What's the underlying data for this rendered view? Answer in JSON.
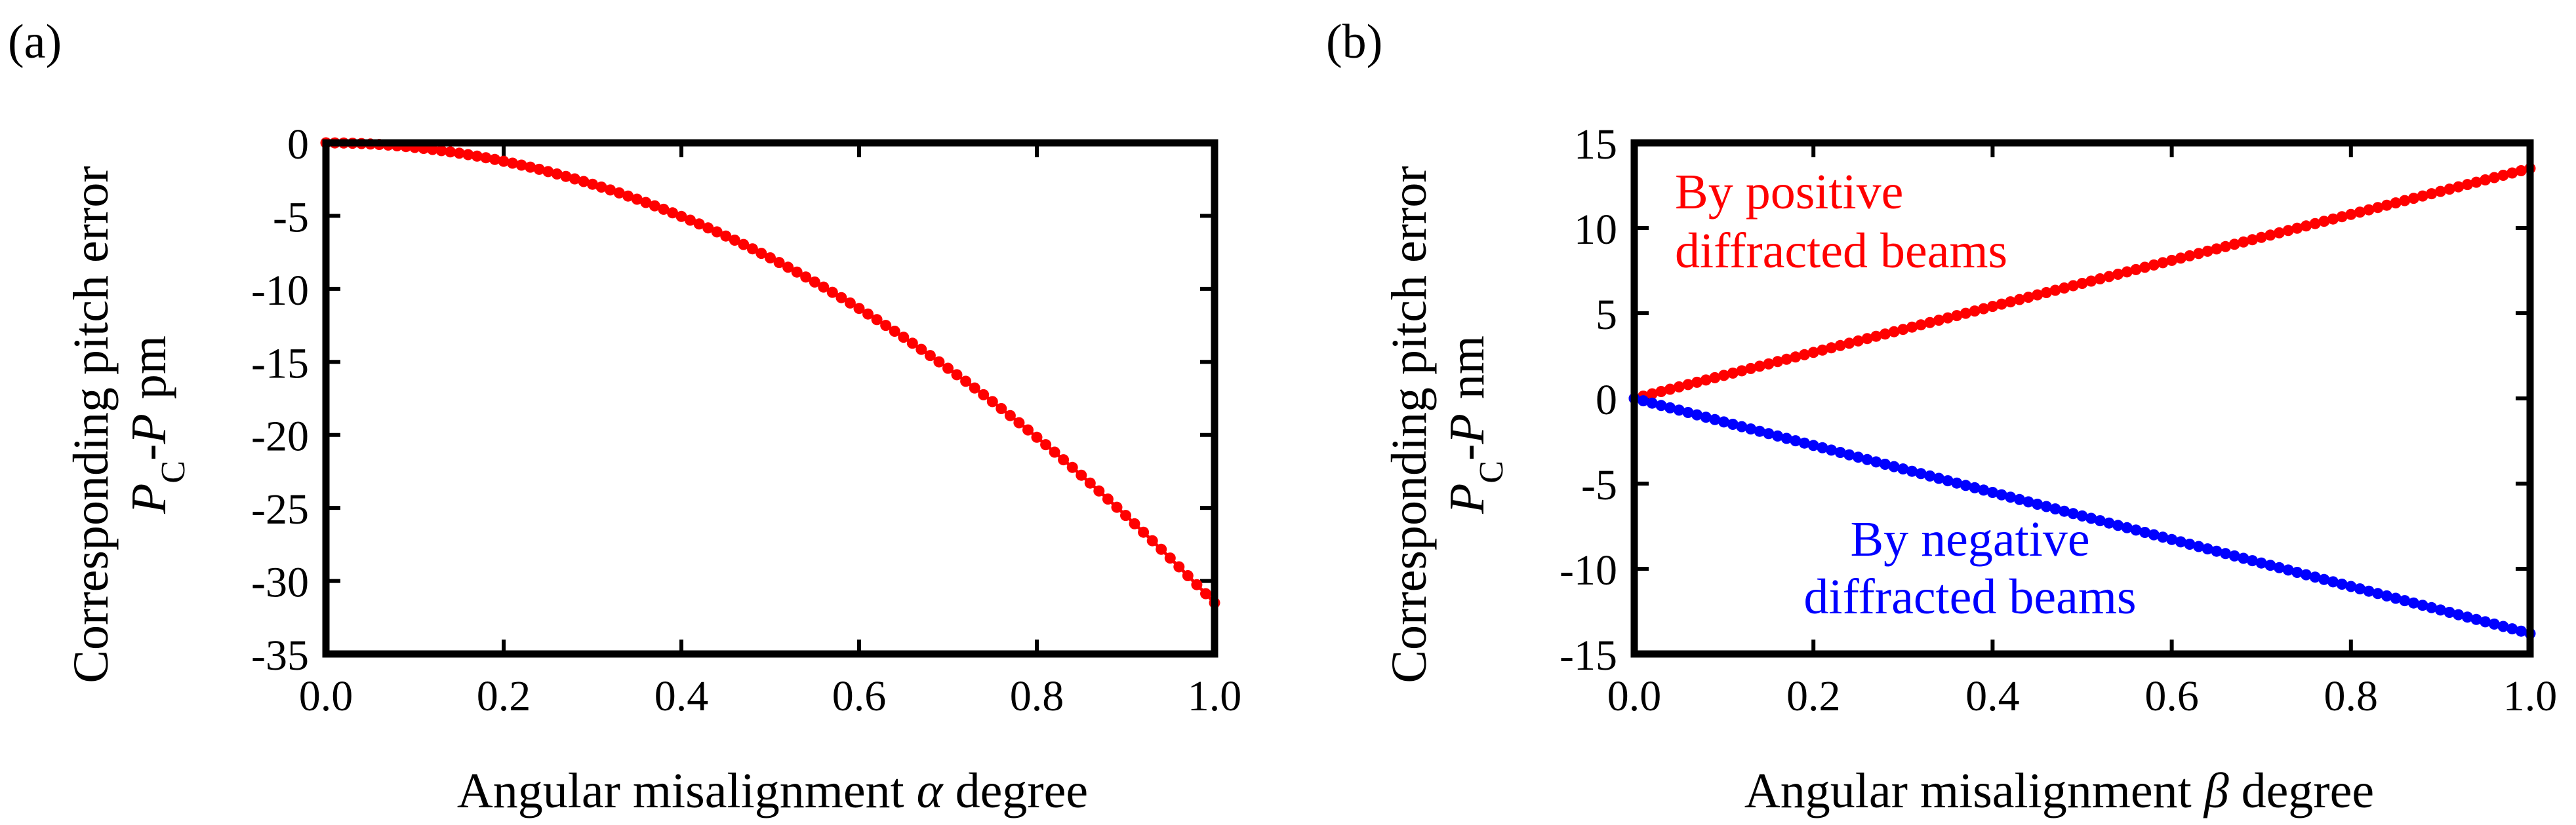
{
  "chart_data": [
    {
      "type": "scatter",
      "panel_label": "(a)",
      "ylabel": {
        "line1": "Corresponding pitch error",
        "line2": {
          "sym": "P",
          "sub": "C",
          "mid": "-",
          "sym2": "P",
          "unit": "pm"
        }
      },
      "xlabel": {
        "prefix": "Angular misalignment ",
        "sym": "α",
        "suffix": " degree"
      },
      "xlim": [
        0.0,
        1.0
      ],
      "ylim": [
        -35,
        0
      ],
      "xticks": [
        "0.0",
        "0.2",
        "0.4",
        "0.6",
        "0.8",
        "1.0"
      ],
      "yticks": [
        "0",
        "-5",
        "-10",
        "-15",
        "-20",
        "-25",
        "-30",
        "-35"
      ],
      "series": [
        {
          "name": "pitch error",
          "color": "#ff0000",
          "marker": "circle",
          "x_start": 0.0,
          "x_end": 1.0,
          "n_points": 101,
          "model": "quadratic",
          "value_at_x_end": -31.5
        }
      ],
      "annotations": []
    },
    {
      "type": "scatter",
      "panel_label": "(b)",
      "ylabel": {
        "line1": "Corresponding pitch error",
        "line2": {
          "sym": "P",
          "sub": "C",
          "mid": "-",
          "sym2": "P",
          "unit": "nm"
        }
      },
      "xlabel": {
        "prefix": "Angular misalignment ",
        "sym": "β",
        "suffix": " degree"
      },
      "xlim": [
        0.0,
        1.0
      ],
      "ylim": [
        -15,
        15
      ],
      "xticks": [
        "0.0",
        "0.2",
        "0.4",
        "0.6",
        "0.8",
        "1.0"
      ],
      "yticks": [
        "15",
        "10",
        "5",
        "0",
        "-5",
        "-10",
        "-15"
      ],
      "series": [
        {
          "name": "By positive diffracted beams",
          "color": "#ff0000",
          "marker": "circle",
          "x_start": 0.0,
          "x_end": 1.0,
          "n_points": 101,
          "model": "linear",
          "value_at_x_end": 13.5
        },
        {
          "name": "By negative diffracted beams",
          "color": "#0000ff",
          "marker": "circle",
          "x_start": 0.0,
          "x_end": 1.0,
          "n_points": 101,
          "model": "linear",
          "value_at_x_end": -13.8
        }
      ],
      "annotations": [
        {
          "lines": [
            "By positive",
            "diffracted beams"
          ],
          "color": "#ff0000",
          "anchor": "upper-left"
        },
        {
          "lines": [
            "By negative",
            "diffracted beams"
          ],
          "color": "#0000ff",
          "anchor": "lower-center"
        }
      ]
    }
  ]
}
